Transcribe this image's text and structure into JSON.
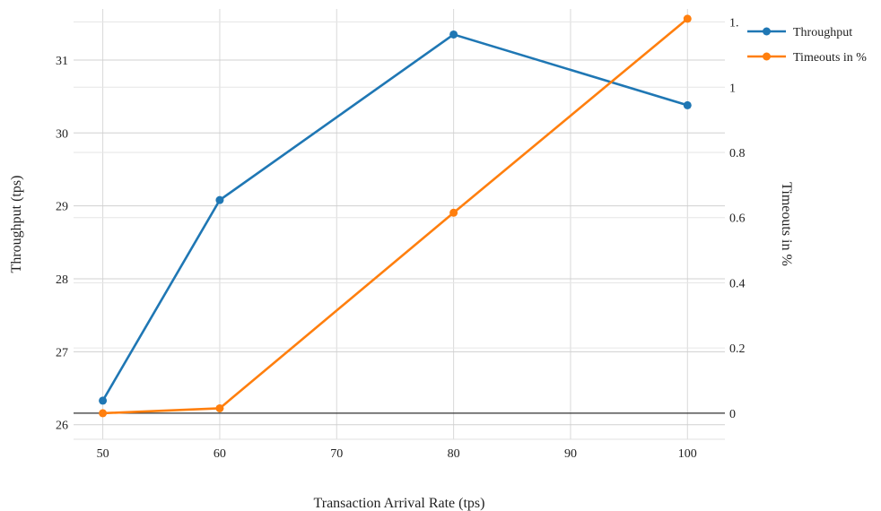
{
  "chart_data": {
    "type": "line",
    "title": "",
    "xlabel": "Transaction Arrival Rate (tps)",
    "ylabel": "Throughput (tps)",
    "y2label": "Timeouts in %",
    "x": [
      50,
      60,
      80,
      100
    ],
    "x_ticks": [
      "50",
      "60",
      "70",
      "80",
      "90",
      "100"
    ],
    "y_ticks": [
      "26",
      "27",
      "28",
      "29",
      "30",
      "31"
    ],
    "y2_ticks": [
      "0",
      "0.2",
      "0.4",
      "0.6",
      "0.8",
      "1",
      "1."
    ],
    "xlim": [
      47.5,
      103.2
    ],
    "ylim": [
      25.8,
      31.7
    ],
    "y2lim": [
      -0.08,
      1.24
    ],
    "grid": true,
    "legend_position": "top-right",
    "series": [
      {
        "name": "Throughput",
        "axis": "left",
        "color": "#1f77b4",
        "values": [
          26.33,
          29.08,
          31.35,
          30.38
        ]
      },
      {
        "name": "Timeouts in %",
        "axis": "right",
        "color": "#ff7f0e",
        "values": [
          0.0,
          0.015,
          0.615,
          1.21
        ]
      }
    ]
  }
}
